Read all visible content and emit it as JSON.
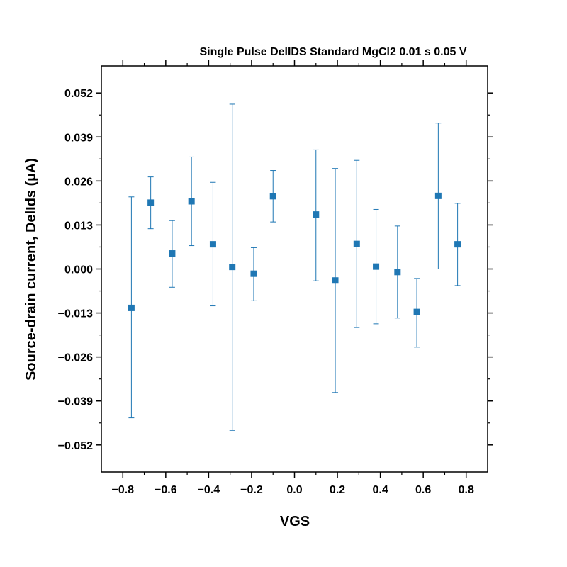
{
  "chart_data": {
    "type": "scatter",
    "title": "Single Pulse DelIDS Standard MgCl2 0.01 s 0.05 V",
    "xlabel": "VGS",
    "ylabel": "Source-drain current, DelIds (µA)",
    "xlim": [
      -0.9,
      0.9
    ],
    "ylim": [
      -0.06,
      0.06
    ],
    "x_ticks": [
      -0.8,
      -0.6,
      -0.4,
      -0.2,
      0.0,
      0.2,
      0.4,
      0.6,
      0.8
    ],
    "x_tick_labels": [
      "−0.8",
      "−0.6",
      "−0.4",
      "−0.2",
      "0.0",
      "0.2",
      "0.4",
      "0.6",
      "0.8"
    ],
    "y_ticks": [
      0.052,
      0.039,
      0.026,
      0.013,
      0.0,
      -0.013,
      -0.026,
      -0.039,
      -0.052
    ],
    "y_tick_labels": [
      "0.052",
      "0.039",
      "0.026",
      "0.013",
      "0.000",
      "−0.013",
      "−0.026",
      "−0.039",
      "−0.052"
    ],
    "grid": false,
    "series": [
      {
        "name": "DelIDS",
        "color": "#1f77b4",
        "marker": "square",
        "points": [
          {
            "x": -0.76,
            "y": -0.0115,
            "err_low": -0.044,
            "err_high": 0.0213
          },
          {
            "x": -0.67,
            "y": 0.0196,
            "err_low": 0.0119,
            "err_high": 0.0272
          },
          {
            "x": -0.57,
            "y": 0.0046,
            "err_low": -0.0054,
            "err_high": 0.0143
          },
          {
            "x": -0.48,
            "y": 0.02,
            "err_low": 0.0069,
            "err_high": 0.0331
          },
          {
            "x": -0.38,
            "y": 0.0073,
            "err_low": -0.0109,
            "err_high": 0.0256
          },
          {
            "x": -0.29,
            "y": 0.0006,
            "err_low": -0.0477,
            "err_high": 0.0487
          },
          {
            "x": -0.19,
            "y": -0.0014,
            "err_low": -0.0094,
            "err_high": 0.0063
          },
          {
            "x": -0.1,
            "y": 0.0215,
            "err_low": 0.0139,
            "err_high": 0.0291
          },
          {
            "x": 0.1,
            "y": 0.0161,
            "err_low": -0.0035,
            "err_high": 0.0352
          },
          {
            "x": 0.19,
            "y": -0.0034,
            "err_low": -0.0365,
            "err_high": 0.0297
          },
          {
            "x": 0.29,
            "y": 0.0074,
            "err_low": -0.0173,
            "err_high": 0.0321
          },
          {
            "x": 0.38,
            "y": 0.0007,
            "err_low": -0.0162,
            "err_high": 0.0176
          },
          {
            "x": 0.48,
            "y": -0.0009,
            "err_low": -0.0145,
            "err_high": 0.0127
          },
          {
            "x": 0.57,
            "y": -0.0127,
            "err_low": -0.0231,
            "err_high": -0.0028
          },
          {
            "x": 0.67,
            "y": 0.0216,
            "err_low": 0.0,
            "err_high": 0.0431
          },
          {
            "x": 0.76,
            "y": 0.0073,
            "err_low": -0.0049,
            "err_high": 0.0194
          }
        ]
      }
    ]
  }
}
